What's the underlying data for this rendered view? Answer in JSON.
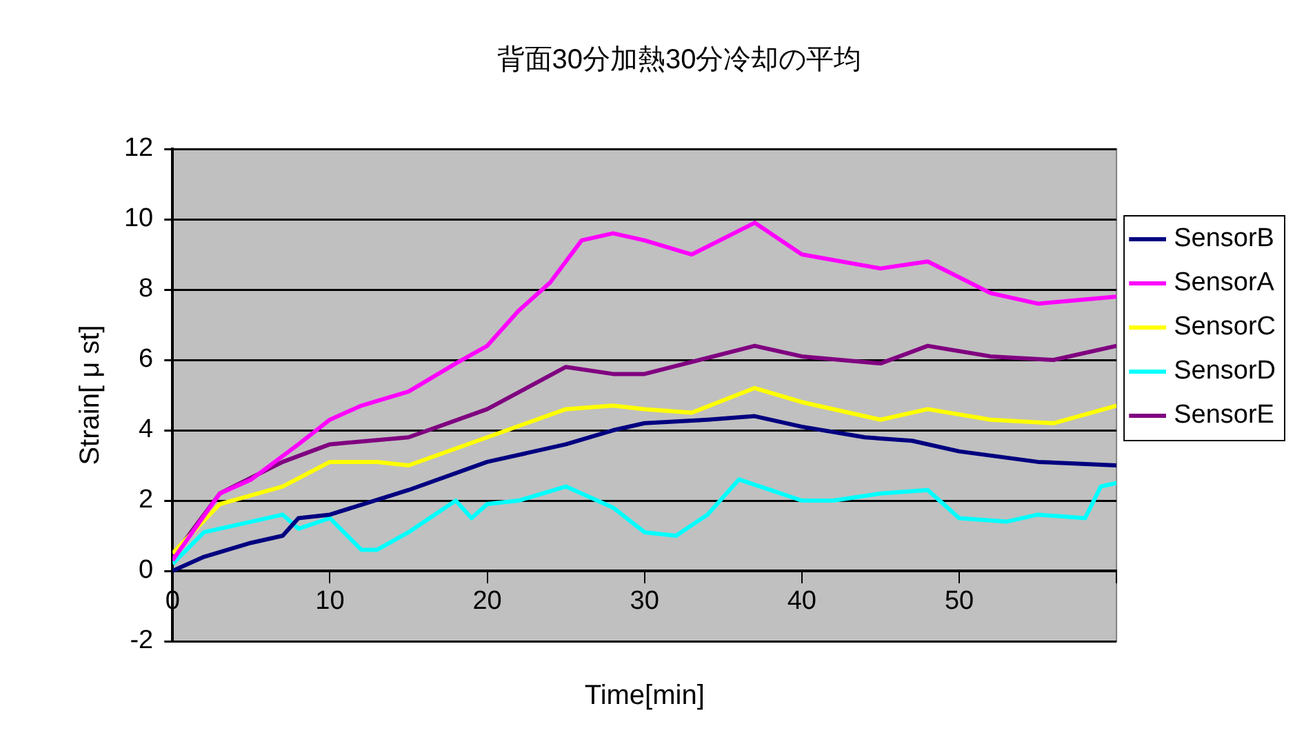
{
  "chart_data": {
    "type": "line",
    "title": "背面30分加熱30分冷却の平均",
    "xlabel": "Time[min]",
    "ylabel": "Strain[ μ st]",
    "xlim": [
      0,
      60
    ],
    "xticks": [
      0,
      10,
      20,
      30,
      40,
      50,
      {
        "value": 60,
        "label": null
      }
    ],
    "ylim": [
      -2,
      12
    ],
    "yticks": [
      -2,
      0,
      2,
      4,
      6,
      8,
      10,
      12
    ],
    "grid": "y",
    "legend": "right",
    "marker": "none",
    "line_style": "solid",
    "series": [
      {
        "name": "SensorB",
        "color": "#000080",
        "x": [
          0,
          2,
          5,
          7,
          8,
          10,
          15,
          20,
          25,
          28,
          30,
          34,
          37,
          40,
          44,
          47,
          50,
          55,
          60
        ],
        "values": [
          0,
          0.4,
          0.8,
          1.0,
          1.5,
          1.6,
          2.3,
          3.1,
          3.6,
          4.0,
          4.2,
          4.3,
          4.4,
          4.1,
          3.8,
          3.7,
          3.4,
          3.1,
          3.0
        ]
      },
      {
        "name": "SensorA",
        "color": "#ff00ff",
        "x": [
          0,
          3,
          5,
          8,
          10,
          12,
          15,
          18,
          20,
          22,
          24,
          26,
          28,
          30,
          33,
          37,
          40,
          45,
          48,
          52,
          55,
          60
        ],
        "values": [
          0.3,
          2.2,
          2.6,
          3.6,
          4.3,
          4.7,
          5.1,
          5.9,
          6.4,
          7.4,
          8.2,
          9.4,
          9.6,
          9.4,
          9.0,
          9.9,
          9.0,
          8.6,
          8.8,
          7.9,
          7.6,
          7.8
        ]
      },
      {
        "name": "SensorC",
        "color": "#ffff00",
        "x": [
          0,
          3,
          7,
          10,
          13,
          15,
          20,
          25,
          28,
          30,
          33,
          37,
          40,
          45,
          48,
          52,
          56,
          60
        ],
        "values": [
          0.5,
          1.9,
          2.4,
          3.1,
          3.1,
          3.0,
          3.8,
          4.6,
          4.7,
          4.6,
          4.5,
          5.2,
          4.8,
          4.3,
          4.6,
          4.3,
          4.2,
          4.7
        ]
      },
      {
        "name": "SensorD",
        "color": "#00ffff",
        "x": [
          0,
          2,
          5,
          7,
          8,
          10,
          12,
          13,
          15,
          18,
          19,
          20,
          22,
          25,
          28,
          30,
          32,
          34,
          36,
          38,
          40,
          42,
          45,
          48,
          50,
          53,
          55,
          58,
          59,
          60
        ],
        "values": [
          0.2,
          1.1,
          1.4,
          1.6,
          1.2,
          1.5,
          0.6,
          0.6,
          1.1,
          2.0,
          1.5,
          1.9,
          2.0,
          2.4,
          1.8,
          1.1,
          1.0,
          1.6,
          2.6,
          2.3,
          2.0,
          2.0,
          2.2,
          2.3,
          1.5,
          1.4,
          1.6,
          1.5,
          2.4,
          2.5
        ]
      },
      {
        "name": "SensorE",
        "color": "#800080",
        "x": [
          0,
          3,
          7,
          10,
          15,
          20,
          25,
          28,
          30,
          37,
          40,
          45,
          48,
          52,
          56,
          60
        ],
        "values": [
          0.4,
          2.2,
          3.1,
          3.6,
          3.8,
          4.6,
          5.8,
          5.6,
          5.6,
          6.4,
          6.1,
          5.9,
          6.4,
          6.1,
          6.0,
          6.4
        ]
      }
    ]
  }
}
